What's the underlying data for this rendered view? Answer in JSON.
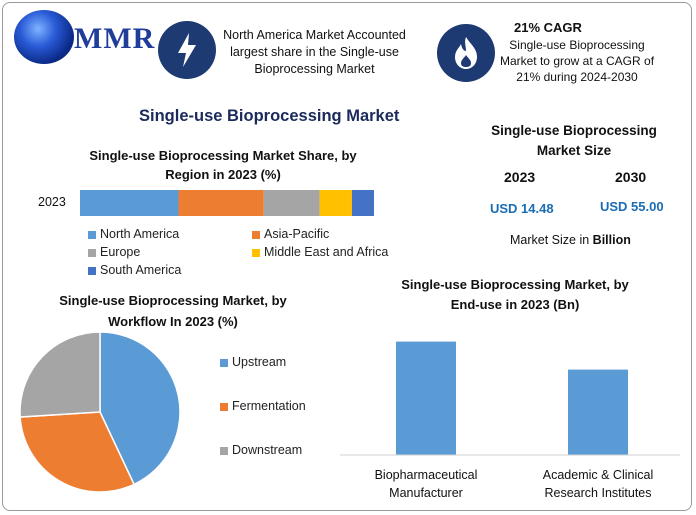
{
  "logo": {
    "text": "MMR"
  },
  "header": {
    "north_america_text": "North America Market Accounted largest share in the Single-use Bioprocessing Market",
    "cagr_title": "21% CAGR",
    "cagr_text": "Single-use Bioprocessing Market to grow at a CAGR of 21% during 2024-2030"
  },
  "main_title": "Single-use Bioprocessing Market",
  "market_size": {
    "title": "Single-use Bioprocessing Market Size",
    "year1": "2023",
    "year2": "2030",
    "value1": "USD 14.48",
    "value2": "USD 55.00",
    "unit_note_prefix": "Market Size in ",
    "unit_note_bold": "Billion"
  },
  "colors": {
    "north_america": "#5b9bd5",
    "asia_pacific": "#ed7d31",
    "europe": "#a5a5a5",
    "mea": "#ffc000",
    "south_america": "#4472c4",
    "upstream": "#5b9bd5",
    "fermentation": "#ed7d31",
    "downstream": "#a5a5a5",
    "bar": "#5b9bd5",
    "icon_circle": "#1e3a73"
  },
  "chart_data": [
    {
      "type": "bar",
      "orientation": "horizontal-stacked",
      "title": "Single-use Bioprocessing Market Share, by Region in 2023 (%)",
      "categories": [
        "2023"
      ],
      "series": [
        {
          "name": "North America",
          "values": [
            33.5
          ]
        },
        {
          "name": "Asia-Pacific",
          "values": [
            29
          ]
        },
        {
          "name": "Europe",
          "values": [
            19
          ]
        },
        {
          "name": "Middle East and Africa",
          "values": [
            11
          ]
        },
        {
          "name": "South America",
          "values": [
            7.5
          ]
        }
      ],
      "legend": "bottom"
    },
    {
      "type": "pie",
      "title": "Single-use Bioprocessing Market, by Workflow In 2023 (%)",
      "slices": [
        {
          "name": "Upstream",
          "value": 43
        },
        {
          "name": "Fermentation",
          "value": 31
        },
        {
          "name": "Downstream",
          "value": 26
        }
      ],
      "legend": "right"
    },
    {
      "type": "bar",
      "title": "Single-use Bioprocessing Market, by End-use in 2023 (Bn)",
      "categories": [
        "Biopharmaceutical Manufacturer",
        "Academic & Clinical Research Institutes"
      ],
      "values": [
        8.1,
        6.1
      ],
      "ylim": [
        0,
        10
      ]
    }
  ]
}
